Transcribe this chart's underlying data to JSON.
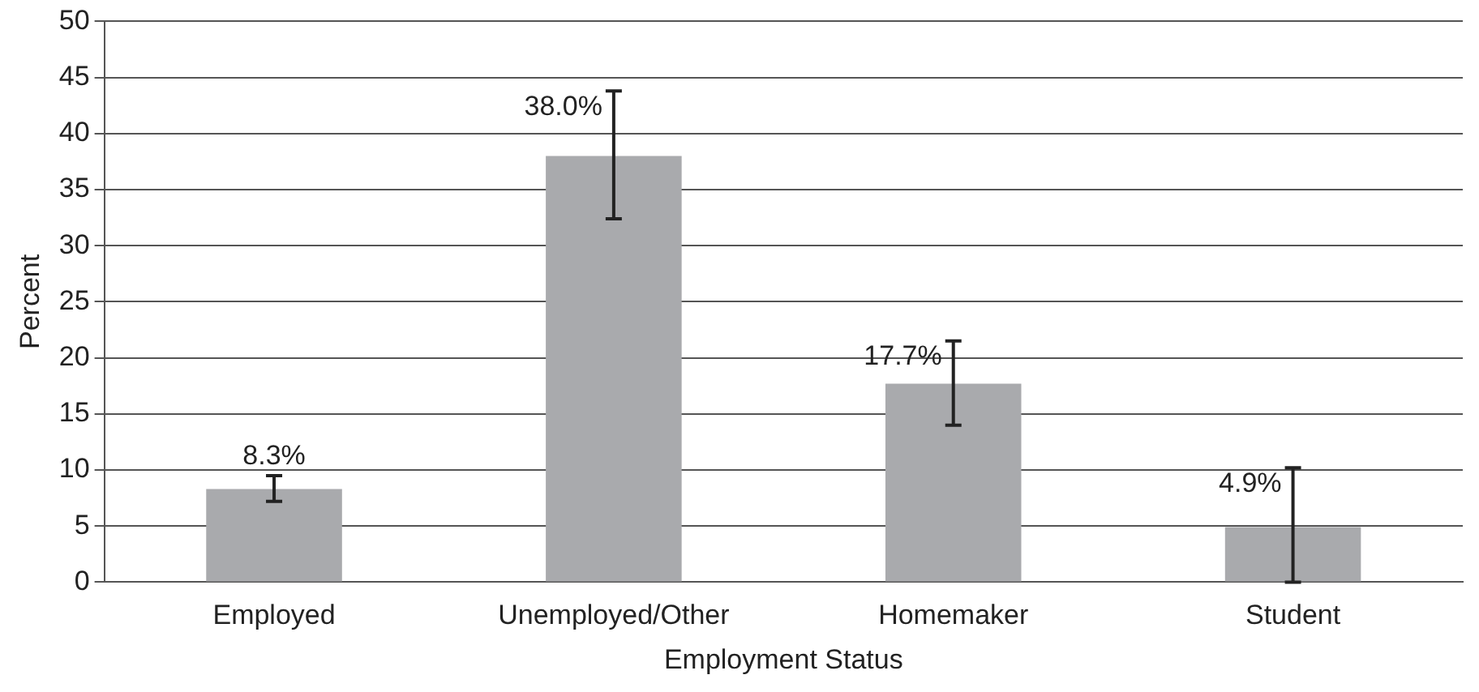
{
  "chart_data": {
    "type": "bar",
    "xlabel": "Employment Status",
    "ylabel": "Percent",
    "categories": [
      "Employed",
      "Unemployed/Other",
      "Homemaker",
      "Student"
    ],
    "values": [
      8.3,
      38.0,
      17.7,
      4.9
    ],
    "errors": [
      [
        7.2,
        9.5
      ],
      [
        32.4,
        43.8
      ],
      [
        14.0,
        21.5
      ],
      [
        0,
        10.2
      ]
    ],
    "value_labels": [
      "8.3%",
      "38.0%",
      "17.7%",
      "4.9%"
    ],
    "color": "#a9aaad",
    "ylim": [
      0,
      50
    ],
    "yticks": [
      0,
      5,
      10,
      15,
      20,
      25,
      30,
      35,
      40,
      45,
      50
    ],
    "grid": "y",
    "legend": false
  }
}
